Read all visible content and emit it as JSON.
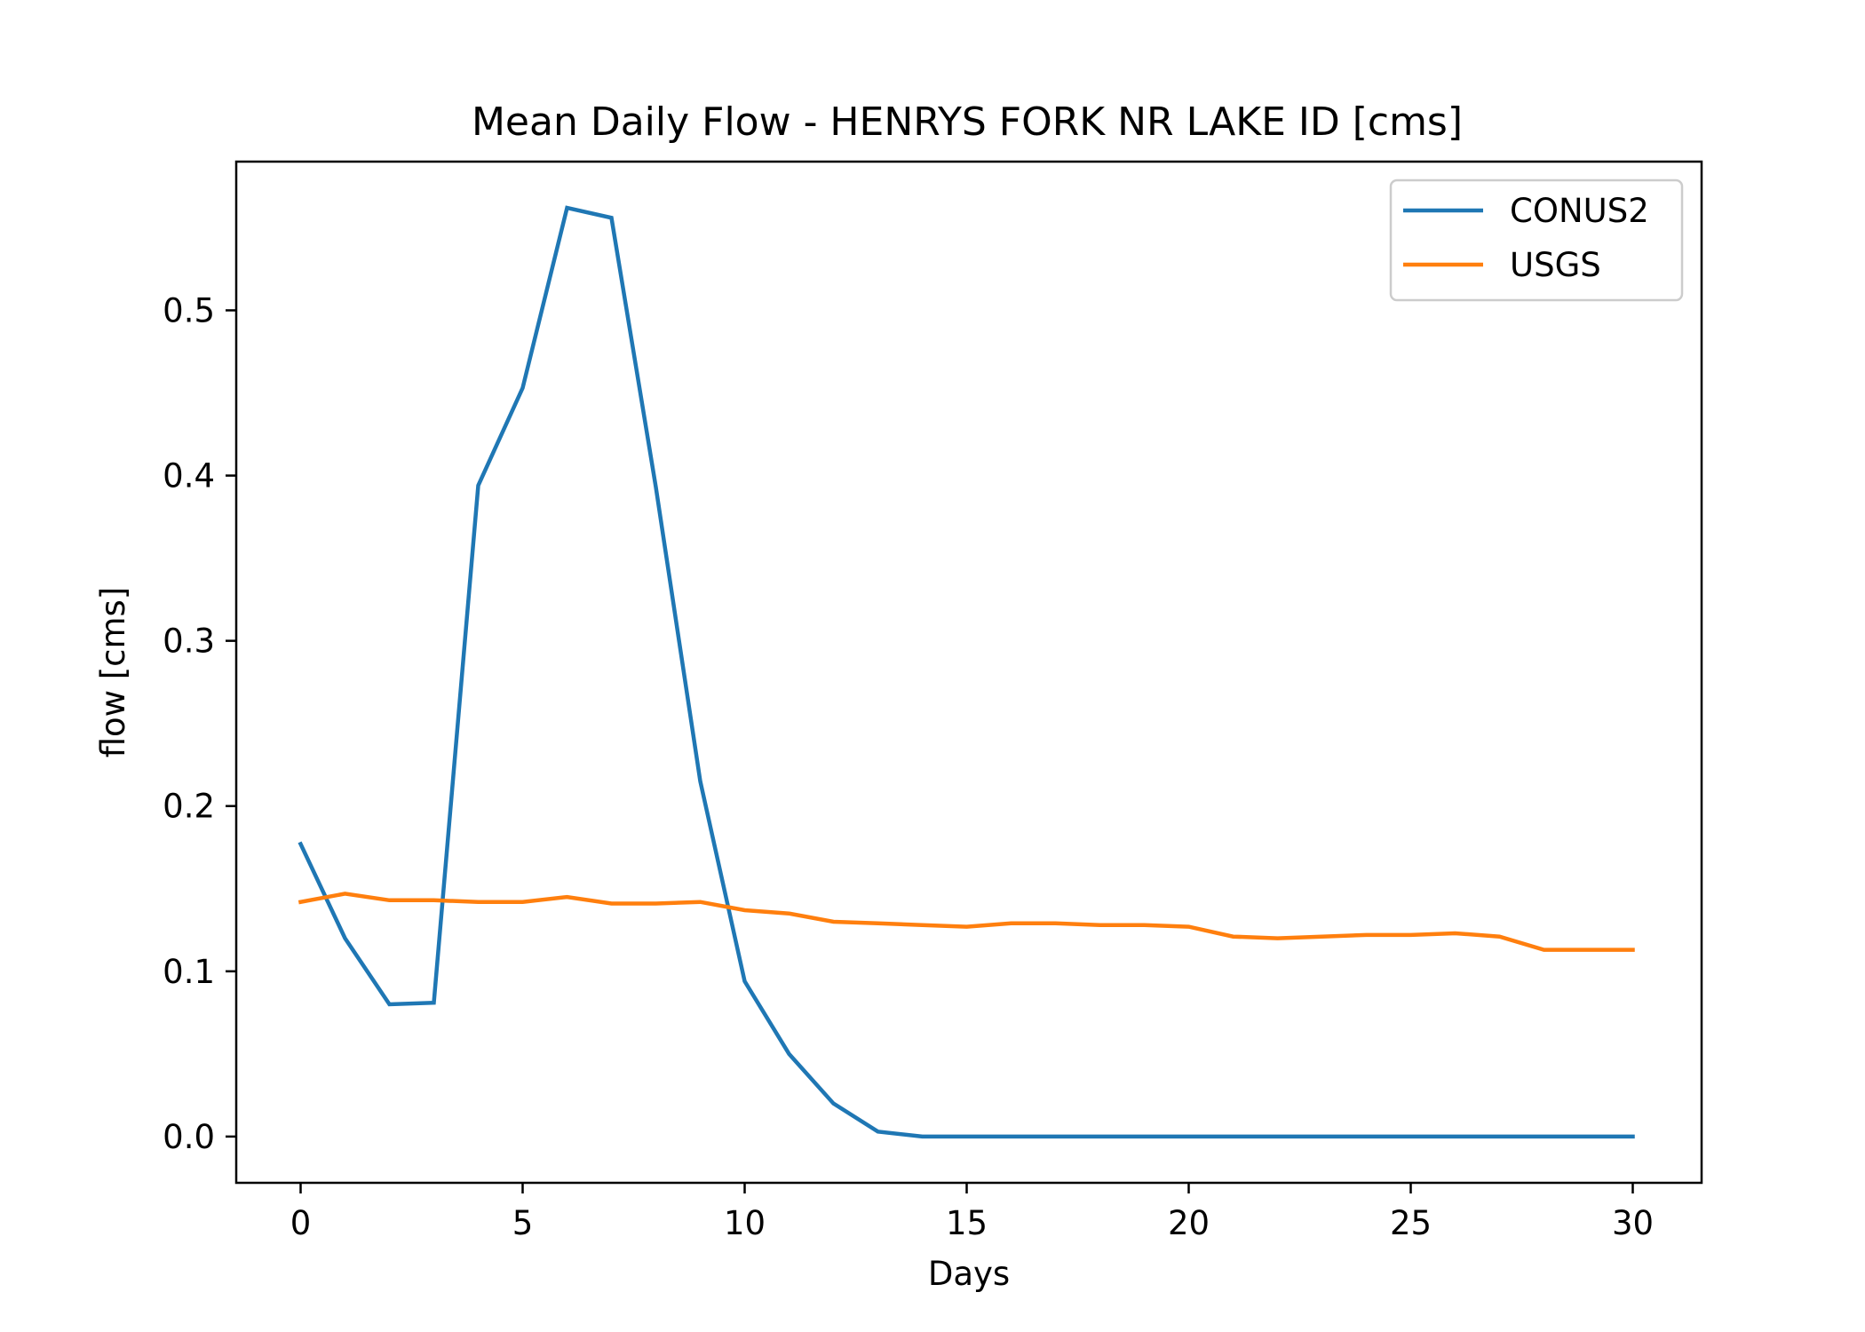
{
  "chart_data": {
    "type": "line",
    "title": "Mean Daily Flow - HENRYS FORK NR LAKE ID [cms]",
    "xlabel": "Days",
    "ylabel": "flow [cms]",
    "xlim": [
      -1.45,
      31.55
    ],
    "ylim": [
      -0.028,
      0.59
    ],
    "xticks": [
      0,
      5,
      10,
      15,
      20,
      25,
      30
    ],
    "xtick_labels": [
      "0",
      "5",
      "10",
      "15",
      "20",
      "25",
      "30"
    ],
    "yticks": [
      0.0,
      0.1,
      0.2,
      0.3,
      0.4,
      0.5
    ],
    "ytick_labels": [
      "0.0",
      "0.1",
      "0.2",
      "0.3",
      "0.4",
      "0.5"
    ],
    "grid": false,
    "legend_position": "top-right",
    "x": [
      0,
      1,
      2,
      3,
      4,
      5,
      6,
      7,
      8,
      9,
      10,
      11,
      12,
      13,
      14,
      15,
      16,
      17,
      18,
      19,
      20,
      21,
      22,
      23,
      24,
      25,
      26,
      27,
      28,
      29,
      30
    ],
    "series": [
      {
        "name": "CONUS2",
        "color": "#1f77b4",
        "values": [
          0.177,
          0.12,
          0.08,
          0.081,
          0.394,
          0.453,
          0.562,
          0.556,
          0.393,
          0.215,
          0.094,
          0.05,
          0.02,
          0.003,
          0.0,
          0.0,
          0.0,
          0.0,
          0.0,
          0.0,
          0.0,
          0.0,
          0.0,
          0.0,
          0.0,
          0.0,
          0.0,
          0.0,
          0.0,
          0.0,
          0.0
        ]
      },
      {
        "name": "USGS",
        "color": "#ff7f0e",
        "values": [
          0.142,
          0.147,
          0.143,
          0.143,
          0.142,
          0.142,
          0.145,
          0.141,
          0.141,
          0.142,
          0.137,
          0.135,
          0.13,
          0.129,
          0.128,
          0.127,
          0.129,
          0.129,
          0.128,
          0.128,
          0.127,
          0.121,
          0.12,
          0.121,
          0.122,
          0.122,
          0.123,
          0.121,
          0.113,
          0.113,
          0.113
        ]
      }
    ]
  }
}
